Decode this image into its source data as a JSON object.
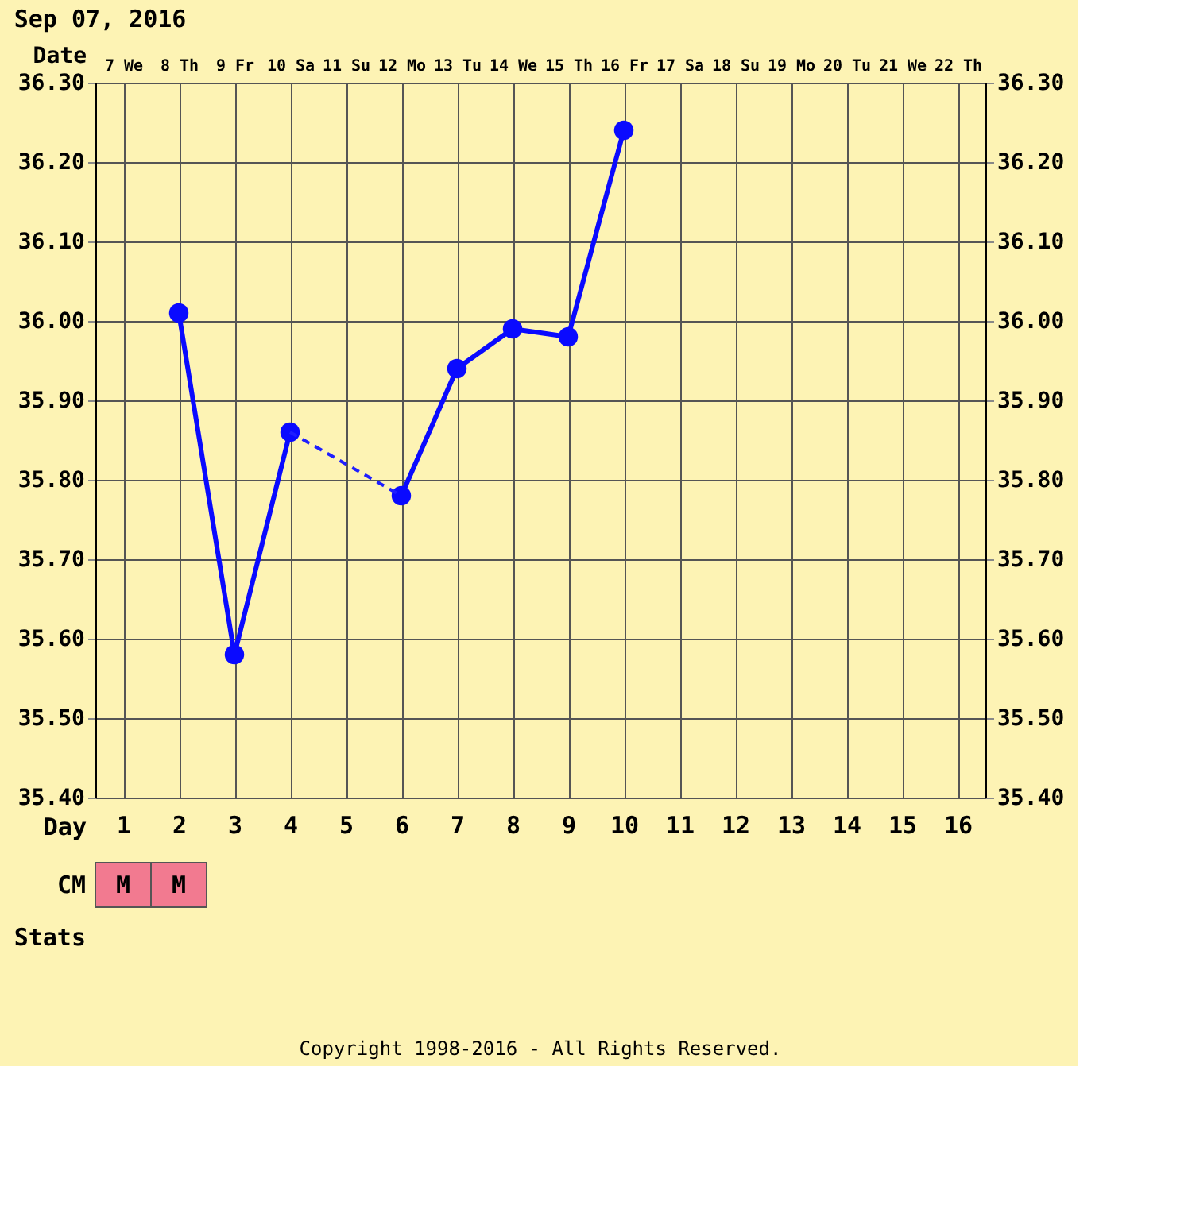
{
  "chart_data": {
    "type": "line",
    "title": "Sep 07, 2016",
    "xlabel": "Date",
    "x2label": "Day",
    "categories": [
      "7 We",
      "8 Th",
      "9 Fr",
      "10 Sa",
      "11 Su",
      "12 Mo",
      "13 Tu",
      "14 We",
      "15 Th",
      "16 Fr",
      "17 Sa",
      "18 Su",
      "19 Mo",
      "20 Tu",
      "21 We",
      "22 Th"
    ],
    "series": [
      {
        "color": "#0a0aff",
        "line_style": "solid",
        "marker": "circle",
        "values": [
          null,
          36.01,
          35.58,
          35.86,
          null,
          35.78,
          35.94,
          35.99,
          35.98,
          36.24,
          null,
          null,
          null,
          null,
          null,
          null
        ]
      },
      {
        "color": "#1e1eff",
        "line_style": "dashed",
        "marker": "none",
        "x": [
          "10 Sa",
          "12 Mo"
        ],
        "values": [
          35.86,
          35.78
        ]
      }
    ],
    "ylim": [
      35.4,
      36.3
    ],
    "yticks": [
      {
        "value": 35.4,
        "label": "35.40"
      },
      {
        "value": 35.5,
        "label": "35.50"
      },
      {
        "value": 35.6,
        "label": "35.60"
      },
      {
        "value": 35.7,
        "label": "35.70"
      },
      {
        "value": 35.8,
        "label": "35.80"
      },
      {
        "value": 35.9,
        "label": "35.90"
      },
      {
        "value": 36.0,
        "label": "36.00"
      },
      {
        "value": 36.1,
        "label": "36.10"
      },
      {
        "value": 36.2,
        "label": "36.20"
      },
      {
        "value": 36.3,
        "label": "36.30"
      }
    ],
    "y2lim": [
      35.4,
      36.3
    ],
    "y2ticks": [
      {
        "value": 35.4,
        "label": "35.40"
      },
      {
        "value": 35.5,
        "label": "35.50"
      },
      {
        "value": 35.6,
        "label": "35.60"
      },
      {
        "value": 35.7,
        "label": "35.70"
      },
      {
        "value": 35.8,
        "label": "35.80"
      },
      {
        "value": 35.9,
        "label": "35.90"
      },
      {
        "value": 36.0,
        "label": "36.00"
      },
      {
        "value": 36.1,
        "label": "36.10"
      },
      {
        "value": 36.2,
        "label": "36.20"
      },
      {
        "value": 36.3,
        "label": "36.30"
      }
    ],
    "x2lim": [
      0.5,
      16.5
    ],
    "x2ticks": [
      1,
      2,
      3,
      4,
      5,
      6,
      7,
      8,
      9,
      10,
      11,
      12,
      13,
      14,
      15,
      16
    ],
    "grid": true,
    "annotations": [
      "CM",
      "M",
      "M",
      "Stats",
      "Copyright 1998-2016 - All Rights Reserved."
    ]
  }
}
